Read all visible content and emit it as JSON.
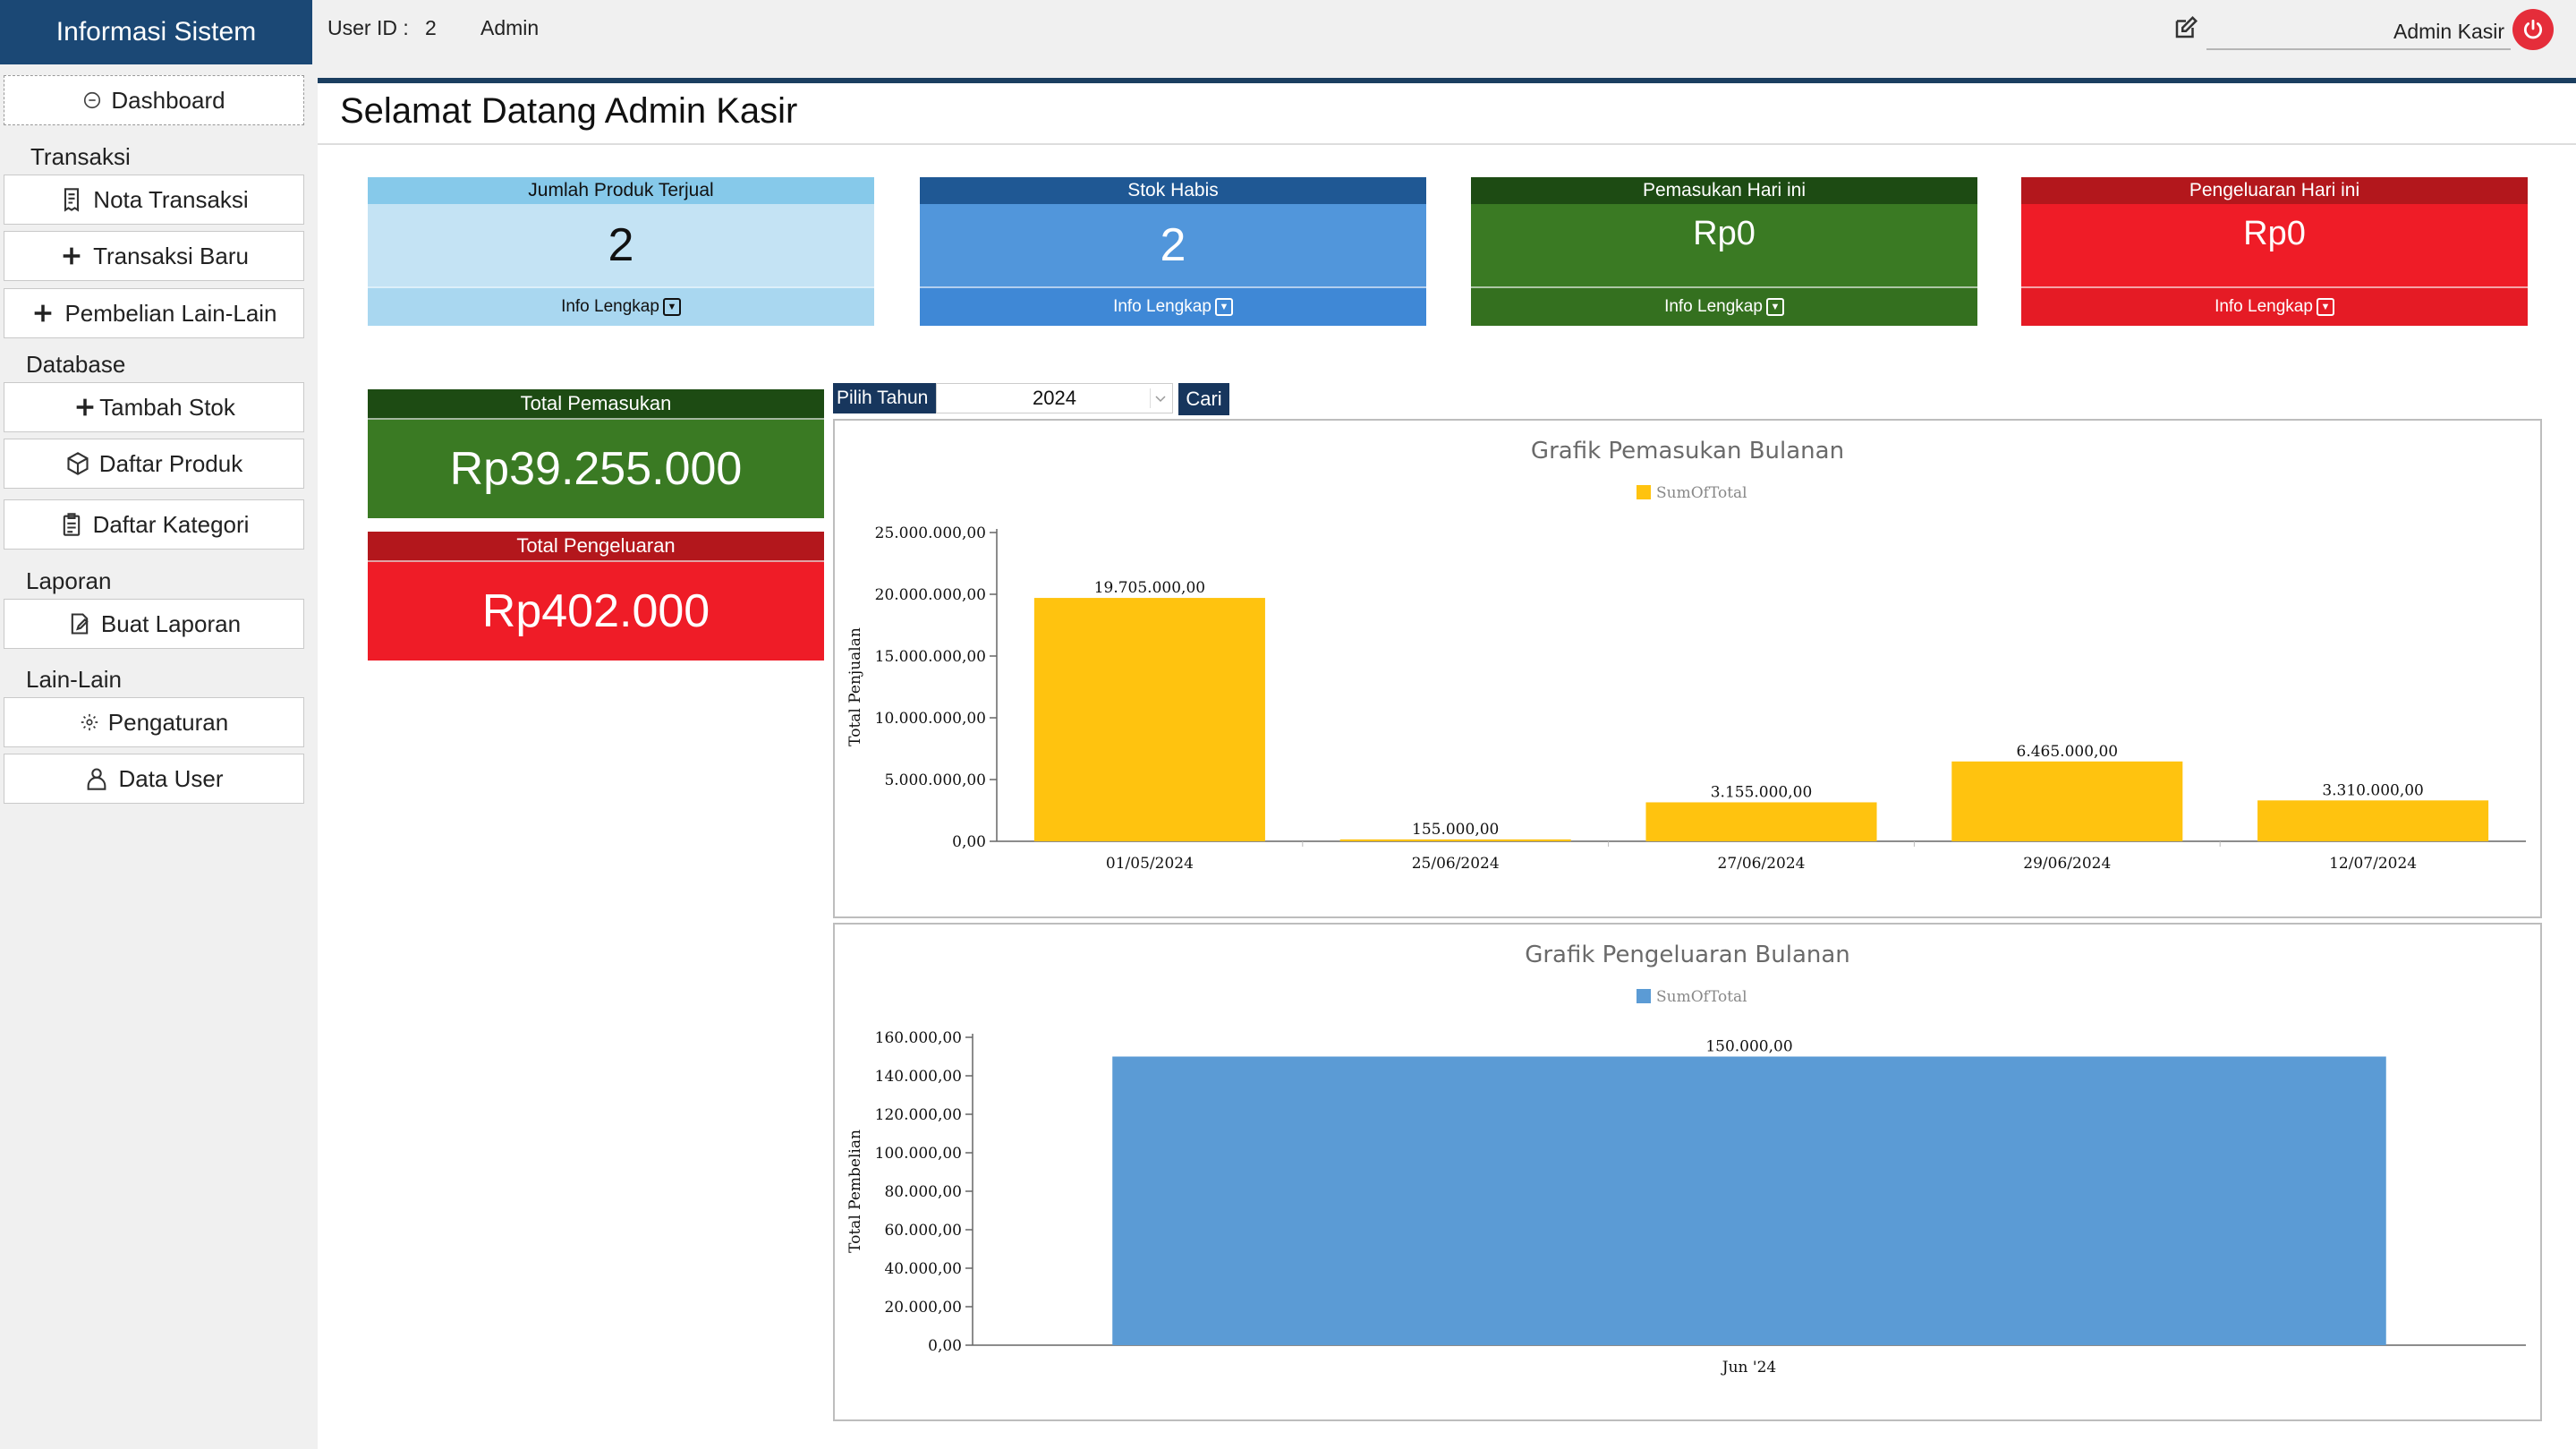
{
  "app": {
    "title": "Informasi Sistem"
  },
  "topbar": {
    "user_id_label": "User ID :",
    "user_id_value": "2",
    "role": "Admin",
    "user_name": "Admin Kasir"
  },
  "sidebar": {
    "dashboard": "Dashboard",
    "sections": {
      "transaksi": "Transaksi",
      "database": "Database",
      "laporan": "Laporan",
      "lain": "Lain-Lain"
    },
    "items": {
      "nota": "Nota Transaksi",
      "transaksi_baru": "Transaksi Baru",
      "pembelian": "Pembelian Lain-Lain",
      "tambah_stok": "Tambah Stok",
      "daftar_produk": "Daftar Produk",
      "daftar_kategori": "Daftar Kategori",
      "buat_laporan": "Buat Laporan",
      "pengaturan": "Pengaturan",
      "data_user": "Data User"
    }
  },
  "main": {
    "welcome": "Selamat Datang Admin Kasir",
    "cards": [
      {
        "title": "Jumlah Produk Terjual",
        "value": "2",
        "footer": "Info Lengkap"
      },
      {
        "title": "Stok Habis",
        "value": "2",
        "footer": "Info Lengkap"
      },
      {
        "title": "Pemasukan Hari ini",
        "value": "Rp0",
        "footer": "Info Lengkap"
      },
      {
        "title": "Pengeluaran Hari ini",
        "value": "Rp0",
        "footer": "Info Lengkap"
      }
    ],
    "totals": {
      "pemasukan_label": "Total Pemasukan",
      "pemasukan_value": "Rp39.255.000",
      "pengeluaran_label": "Total Pengeluaran",
      "pengeluaran_value": "Rp402.000"
    },
    "year_filter": {
      "label": "Pilih Tahun",
      "value": "2024",
      "button": "Cari"
    }
  },
  "colors": {
    "brand": "#1b4875",
    "card_light_blue": "#c4e3f4",
    "card_blue": "#5196db",
    "card_green": "#3a7a23",
    "card_red": "#ef1c27",
    "bar_gold": "#ffc30f",
    "bar_blue": "#5b9bd5"
  },
  "chart_data": [
    {
      "type": "bar",
      "title": "Grafik Pemasukan Bulanan",
      "legend": "SumOfTotal",
      "ylabel": "Total Penjualan",
      "categories": [
        "01/05/2024",
        "25/06/2024",
        "27/06/2024",
        "29/06/2024",
        "12/07/2024"
      ],
      "values": [
        19705000,
        155000,
        3155000,
        6465000,
        3310000
      ],
      "data_labels": [
        "19.705.000,00",
        "155.000,00",
        "3.155.000,00",
        "6.465.000,00",
        "3.310.000,00"
      ],
      "yticks": [
        "0,00",
        "5.000.000,00",
        "10.000.000,00",
        "15.000.000,00",
        "20.000.000,00",
        "25.000.000,00"
      ],
      "ylim": [
        0,
        25000000
      ],
      "color": "#ffc30f"
    },
    {
      "type": "bar",
      "title": "Grafik Pengeluaran Bulanan",
      "legend": "SumOfTotal",
      "ylabel": "Total Pembelian",
      "categories": [
        "Jun '24"
      ],
      "values": [
        150000
      ],
      "data_labels": [
        "150.000,00"
      ],
      "yticks": [
        "0,00",
        "20.000,00",
        "40.000,00",
        "60.000,00",
        "80.000,00",
        "100.000,00",
        "120.000,00",
        "140.000,00",
        "160.000,00"
      ],
      "ylim": [
        0,
        160000
      ],
      "color": "#5b9bd5"
    }
  ]
}
